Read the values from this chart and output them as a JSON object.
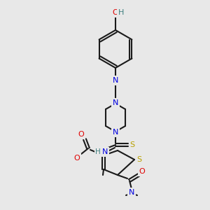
{
  "background_color": "#e8e8e8",
  "bond_color": "#1a1a1a",
  "atom_colors": {
    "O": "#e00000",
    "N": "#0000e0",
    "S": "#b8a000",
    "H": "#408080",
    "C": "#1a1a1a"
  },
  "figsize": [
    3.0,
    3.0
  ],
  "dpi": 100
}
